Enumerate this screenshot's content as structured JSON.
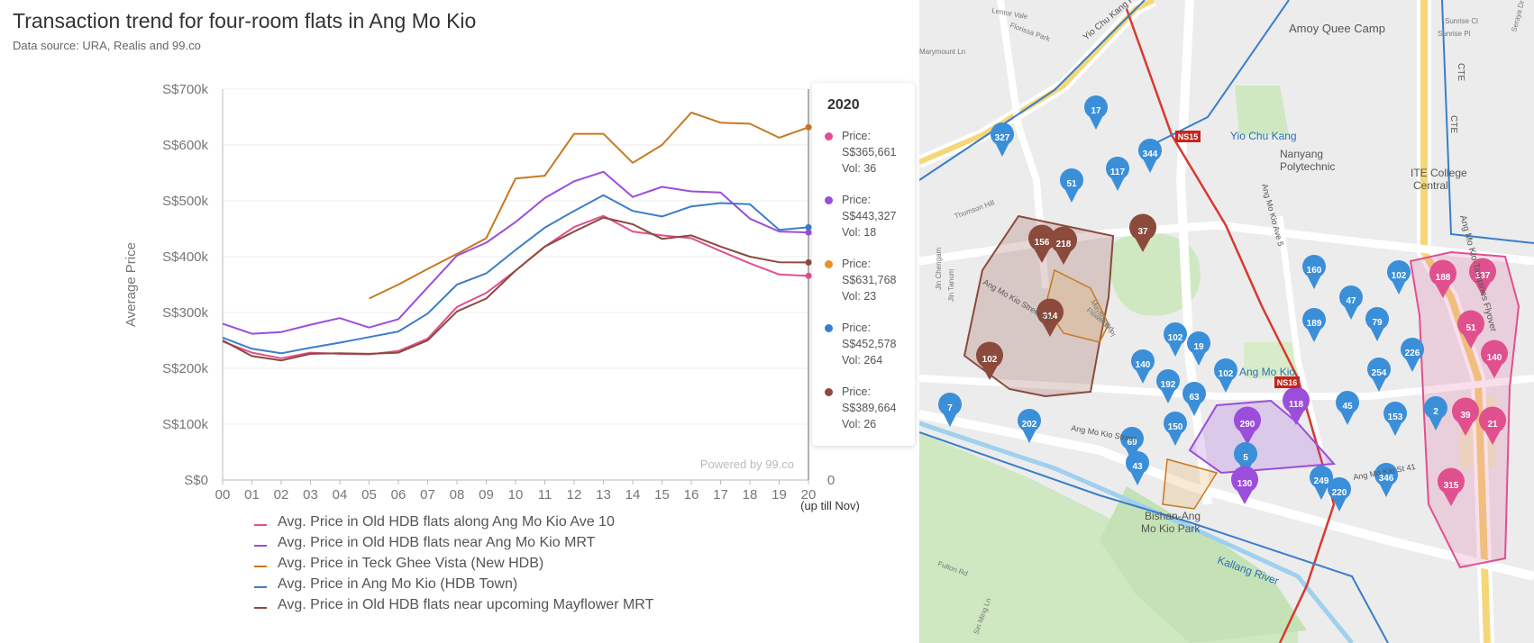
{
  "header": {
    "title": "Transaction trend for four-room flats in Ang Mo Kio",
    "source": "Data source: URA, Realis and 99.co"
  },
  "chart_data": {
    "type": "line",
    "ylabel": "Average Price",
    "ylim": [
      0,
      700000
    ],
    "yticks": [
      "S$0",
      "S$100k",
      "S$200k",
      "S$300k",
      "S$400k",
      "S$500k",
      "S$600k",
      "S$700k"
    ],
    "y2_label": "0",
    "categories": [
      "00",
      "01",
      "02",
      "03",
      "04",
      "05",
      "06",
      "07",
      "08",
      "09",
      "10",
      "11",
      "12",
      "13",
      "14",
      "15",
      "16",
      "17",
      "18",
      "19",
      "20"
    ],
    "last_category_note": "(up till Nov)",
    "watermark": "Powered by 99.co",
    "series": [
      {
        "name": "Avg. Price in Old HDB flats along Ang Mo Kio Ave 10",
        "color": "#e0508f",
        "values": [
          248000,
          228000,
          218000,
          228000,
          226000,
          225000,
          231000,
          253000,
          310000,
          335000,
          375000,
          418000,
          453000,
          473000,
          445000,
          438000,
          433000,
          410000,
          388000,
          368000,
          365661
        ]
      },
      {
        "name": "Avg. Price in Old HDB flats near Ang Mo Kio MRT",
        "color": "#9b4ddb",
        "values": [
          280000,
          262000,
          265000,
          278000,
          290000,
          273000,
          288000,
          345000,
          402000,
          425000,
          462000,
          505000,
          535000,
          552000,
          507000,
          525000,
          517000,
          515000,
          468000,
          445000,
          443327
        ]
      },
      {
        "name": "Avg. Price in Teck Ghee Vista (New HDB)",
        "color": "#c87820",
        "values": [
          null,
          null,
          null,
          null,
          null,
          325000,
          350000,
          378000,
          405000,
          433000,
          540000,
          545000,
          620000,
          620000,
          568000,
          600000,
          658000,
          640000,
          638000,
          613000,
          631768
        ]
      },
      {
        "name": "Avg. Price in Ang Mo Kio (HDB Town)",
        "color": "#3a7ec8",
        "values": [
          255000,
          235000,
          227000,
          237000,
          246000,
          256000,
          266000,
          298000,
          350000,
          370000,
          412000,
          452000,
          482000,
          510000,
          482000,
          472000,
          490000,
          496000,
          494000,
          448000,
          452578
        ]
      },
      {
        "name": "Avg. Price in Old HDB flats near upcoming Mayflower MRT",
        "color": "#8b4a3c",
        "values": [
          250000,
          222000,
          214000,
          226000,
          227000,
          226000,
          228000,
          250000,
          302000,
          325000,
          375000,
          418000,
          445000,
          470000,
          458000,
          432000,
          438000,
          418000,
          400000,
          390000,
          389664
        ]
      }
    ]
  },
  "tooltip": {
    "year": "2020",
    "entries": [
      {
        "price_label": "Price:",
        "price": "S$365,661",
        "vol": "Vol: 36",
        "color": "#e0508f"
      },
      {
        "price_label": "Price:",
        "price": "S$443,327",
        "vol": "Vol: 18",
        "color": "#9b4ddb"
      },
      {
        "price_label": "Price:",
        "price": "S$631,768",
        "vol": "Vol: 23",
        "color": "#e8902a"
      },
      {
        "price_label": "Price:",
        "price": "S$452,578",
        "vol": "Vol: 264",
        "color": "#3a7ec8"
      },
      {
        "price_label": "Price:",
        "price": "S$389,664",
        "vol": "Vol: 26",
        "color": "#8b4a3c"
      }
    ]
  },
  "map": {
    "place_labels": [
      "Amoy Quee Camp",
      "Yio Chu Kang",
      "Nanyang",
      "Polytechnic",
      "ITE College",
      "Central",
      "Ang Mo Kio",
      "Bishan-Ang",
      "Mo Kio Park",
      "Kallang River",
      "Yio Chu Kang Rd",
      "Ang Mo Kio Ave 5",
      "Ang Mo Kio Street 13",
      "Ang Mo Kio Street",
      "Ang Mo Kio St 41",
      "CTE",
      "CTE",
      "Ang Mo Kio-Tampines Flyover",
      "Thomson Hill",
      "Jln Chengam",
      "Jln Tanum",
      "Flower Rd",
      "Mayflower Pl",
      "Fulton Rd",
      "Sin Ming Ln",
      "Marymount Ln",
      "Florissa Park",
      "Lentor Vale",
      "Sunrise Cl",
      "Sunrise Pl",
      "Seraya Dr"
    ],
    "stations": [
      {
        "code": "NS15",
        "name": "Yio Chu Kang"
      },
      {
        "code": "NS16",
        "name": "Ang Mo Kio"
      }
    ],
    "markers": [
      {
        "label": "327",
        "color": "blue"
      },
      {
        "label": "17",
        "color": "blue"
      },
      {
        "label": "51",
        "color": "blue"
      },
      {
        "label": "117",
        "color": "blue"
      },
      {
        "label": "344",
        "color": "blue"
      },
      {
        "label": "37",
        "color": "brown"
      },
      {
        "label": "156",
        "color": "brown"
      },
      {
        "label": "218",
        "color": "brown"
      },
      {
        "label": "314",
        "color": "brown"
      },
      {
        "label": "102",
        "color": "brown"
      },
      {
        "label": "7",
        "color": "blue"
      },
      {
        "label": "202",
        "color": "blue"
      },
      {
        "label": "69",
        "color": "blue"
      },
      {
        "label": "43",
        "color": "blue"
      },
      {
        "label": "140",
        "color": "blue"
      },
      {
        "label": "102",
        "color": "blue"
      },
      {
        "label": "19",
        "color": "blue"
      },
      {
        "label": "192",
        "color": "blue"
      },
      {
        "label": "63",
        "color": "blue"
      },
      {
        "label": "150",
        "color": "blue"
      },
      {
        "label": "102",
        "color": "blue"
      },
      {
        "label": "290",
        "color": "purple"
      },
      {
        "label": "5",
        "color": "blue"
      },
      {
        "label": "130",
        "color": "purple"
      },
      {
        "label": "118",
        "color": "purple"
      },
      {
        "label": "160",
        "color": "blue"
      },
      {
        "label": "47",
        "color": "blue"
      },
      {
        "label": "189",
        "color": "blue"
      },
      {
        "label": "79",
        "color": "blue"
      },
      {
        "label": "102",
        "color": "blue"
      },
      {
        "label": "226",
        "color": "blue"
      },
      {
        "label": "254",
        "color": "blue"
      },
      {
        "label": "45",
        "color": "blue"
      },
      {
        "label": "153",
        "color": "blue"
      },
      {
        "label": "2",
        "color": "blue"
      },
      {
        "label": "346",
        "color": "blue"
      },
      {
        "label": "249",
        "color": "blue"
      },
      {
        "label": "220",
        "color": "blue"
      },
      {
        "label": "188",
        "color": "pink"
      },
      {
        "label": "137",
        "color": "pink"
      },
      {
        "label": "51",
        "color": "pink"
      },
      {
        "label": "140",
        "color": "pink"
      },
      {
        "label": "39",
        "color": "pink"
      },
      {
        "label": "21",
        "color": "pink"
      },
      {
        "label": "315",
        "color": "pink"
      }
    ],
    "colors": {
      "blue": "#3b8fd9",
      "brown": "#8b4a3c",
      "purple": "#9b4ddb",
      "pink": "#e0508f"
    }
  }
}
